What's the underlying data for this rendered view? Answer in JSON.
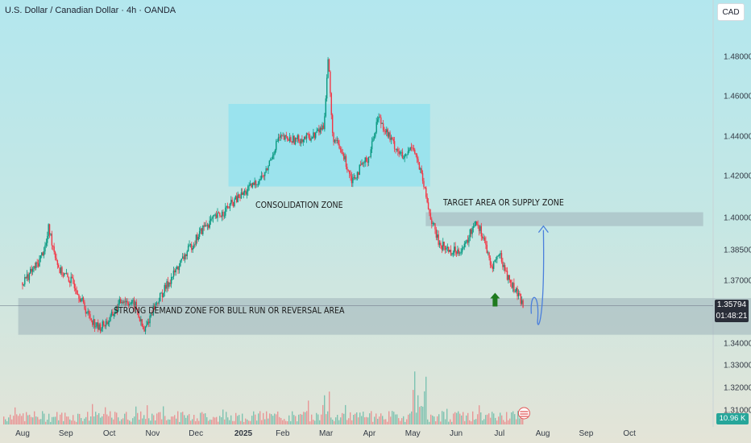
{
  "header": {
    "title": "U.S. Dollar / Canadian Dollar · 4h · OANDA",
    "currency_button": "CAD"
  },
  "current_price": {
    "value": "1.35794",
    "countdown": "01:48:21",
    "volume": "10.96 K"
  },
  "colors": {
    "up": "#089981",
    "down": "#f23645",
    "zone_box": "#9fb3b9",
    "consolidation_box": "#8fe2ef",
    "projection": "#4a7fdc",
    "arrow": "#1e7a1e"
  },
  "chart_data": {
    "type": "candlestick",
    "symbol": "USDCAD",
    "timeframe": "4h",
    "source": "OANDA",
    "x_ticks": [
      "Aug",
      "Sep",
      "Oct",
      "Nov",
      "Dec",
      "2025",
      "Feb",
      "Mar",
      "Apr",
      "May",
      "Jun",
      "Jul",
      "Aug",
      "Sep",
      "Oct"
    ],
    "y_ticks": [
      "1.48000",
      "1.46000",
      "1.44000",
      "1.42000",
      "1.40000",
      "1.38500",
      "1.37000",
      "1.34000",
      "1.33000",
      "1.32000",
      "1.31000"
    ],
    "price_path": [
      {
        "t": 0.0,
        "p": 1.369
      },
      {
        "t": 0.35,
        "p": 1.378
      },
      {
        "t": 0.55,
        "p": 1.388
      },
      {
        "t": 0.6,
        "p": 1.395
      },
      {
        "t": 0.85,
        "p": 1.375
      },
      {
        "t": 1.2,
        "p": 1.368
      },
      {
        "t": 1.5,
        "p": 1.354
      },
      {
        "t": 1.75,
        "p": 1.347
      },
      {
        "t": 2.0,
        "p": 1.351
      },
      {
        "t": 2.3,
        "p": 1.361
      },
      {
        "t": 2.6,
        "p": 1.358
      },
      {
        "t": 2.8,
        "p": 1.345
      },
      {
        "t": 3.0,
        "p": 1.356
      },
      {
        "t": 3.4,
        "p": 1.37
      },
      {
        "t": 3.8,
        "p": 1.384
      },
      {
        "t": 4.2,
        "p": 1.396
      },
      {
        "t": 4.6,
        "p": 1.402
      },
      {
        "t": 4.9,
        "p": 1.408
      },
      {
        "t": 5.3,
        "p": 1.415
      },
      {
        "t": 5.6,
        "p": 1.421
      },
      {
        "t": 5.9,
        "p": 1.439
      },
      {
        "t": 6.3,
        "p": 1.438
      },
      {
        "t": 6.7,
        "p": 1.44
      },
      {
        "t": 6.95,
        "p": 1.445
      },
      {
        "t": 7.05,
        "p": 1.48
      },
      {
        "t": 7.15,
        "p": 1.44
      },
      {
        "t": 7.4,
        "p": 1.43
      },
      {
        "t": 7.6,
        "p": 1.418
      },
      {
        "t": 8.0,
        "p": 1.43
      },
      {
        "t": 8.2,
        "p": 1.45
      },
      {
        "t": 8.5,
        "p": 1.438
      },
      {
        "t": 8.8,
        "p": 1.428
      },
      {
        "t": 9.0,
        "p": 1.436
      },
      {
        "t": 9.2,
        "p": 1.42
      },
      {
        "t": 9.4,
        "p": 1.401
      },
      {
        "t": 9.6,
        "p": 1.388
      },
      {
        "t": 9.9,
        "p": 1.384
      },
      {
        "t": 10.2,
        "p": 1.386
      },
      {
        "t": 10.45,
        "p": 1.399
      },
      {
        "t": 10.65,
        "p": 1.39
      },
      {
        "t": 10.8,
        "p": 1.376
      },
      {
        "t": 11.0,
        "p": 1.383
      },
      {
        "t": 11.2,
        "p": 1.371
      },
      {
        "t": 11.45,
        "p": 1.362
      },
      {
        "t": 11.55,
        "p": 1.3579
      }
    ],
    "annotations": [
      {
        "id": "consolidation",
        "label": "CONSOLIDATION ZONE",
        "t_range": [
          4.75,
          9.4
        ],
        "p_range": [
          1.4148,
          1.456
        ]
      },
      {
        "id": "supply",
        "label": "TARGET AREA OR SUPPLY ZONE",
        "t_range": [
          9.3,
          15.7
        ],
        "p_range": [
          1.396,
          1.4025
        ]
      },
      {
        "id": "demand",
        "label": "STRONG DEMAND ZONE FOR BULL RUN OR REVERSAL AREA",
        "t_range": [
          -0.1,
          17.1
        ],
        "p_range": [
          1.344,
          1.3615
        ]
      }
    ],
    "projection": {
      "type": "bullish",
      "from_price": 1.354,
      "to_price": 1.396
    },
    "last_price": 1.35794
  }
}
